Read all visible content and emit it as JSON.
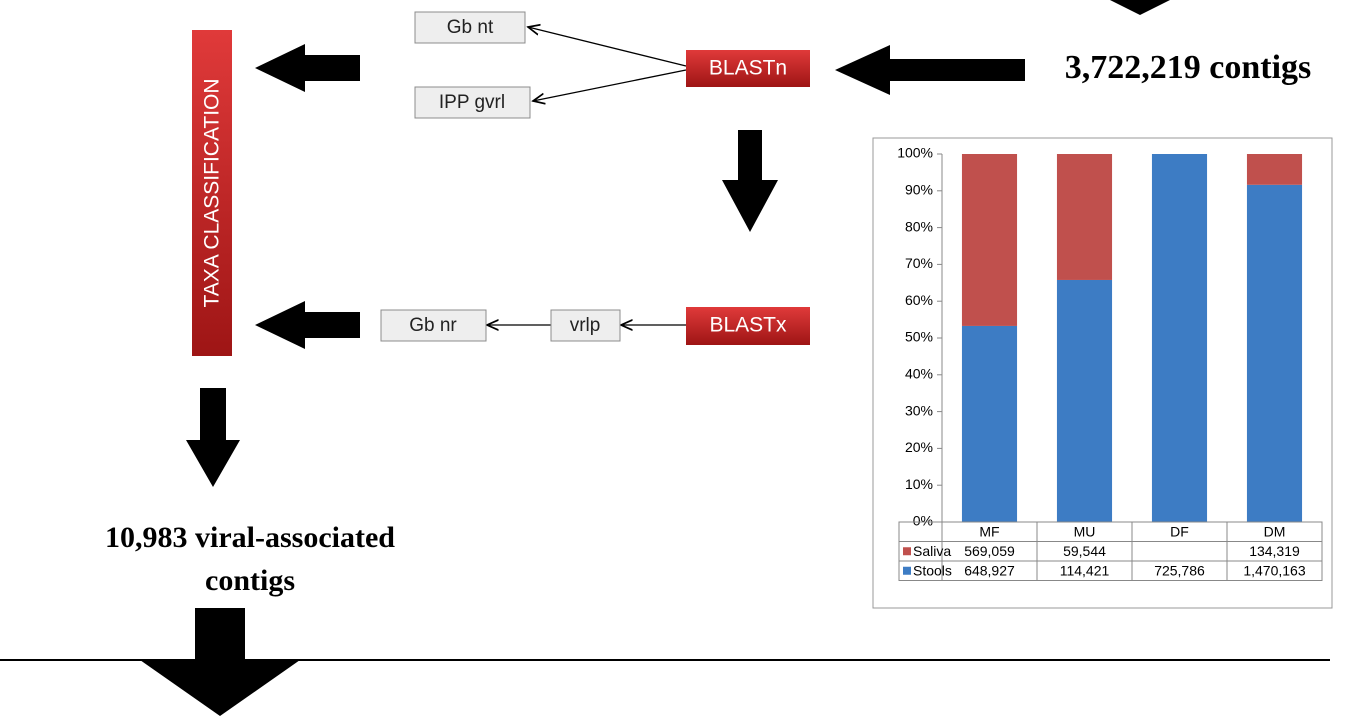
{
  "diagram": {
    "nodes": {
      "gb_nt": "Gb nt",
      "ipp_gvrl": "IPP gvrl",
      "blastn": "BLASTn",
      "contigs_in": "3,722,219 contigs",
      "taxa": "TAXA CLASSIFICATION",
      "gb_nr": "Gb nr",
      "vrlp": "vrlp",
      "blastx": "BLASTx",
      "viral_lines": [
        "10,983 viral-associated",
        "contigs"
      ]
    }
  },
  "chart_data": {
    "type": "bar",
    "stacked": "percent",
    "categories": [
      "MF",
      "MU",
      "DF",
      "DM"
    ],
    "series": [
      {
        "name": "Saliva",
        "color": "#c0504d",
        "values": [
          569059,
          59544,
          null,
          134319
        ],
        "value_labels": [
          "569,059",
          "59,544",
          null,
          "134,319"
        ]
      },
      {
        "name": "Stools",
        "color": "#3d7cc4",
        "values": [
          648927,
          114421,
          725786,
          1470163
        ],
        "value_labels": [
          "648,927",
          "114,421",
          "725,786",
          "1,470,163"
        ]
      }
    ],
    "ylim": [
      0,
      100
    ],
    "yticks": [
      {
        "value": 0,
        "label": "0%"
      },
      {
        "value": 10,
        "label": "10%"
      },
      {
        "value": 20,
        "label": "20%"
      },
      {
        "value": 30,
        "label": "30%"
      },
      {
        "value": 40,
        "label": "40%"
      },
      {
        "value": 50,
        "label": "50%"
      },
      {
        "value": 60,
        "label": "60%"
      },
      {
        "value": 70,
        "label": "70%"
      },
      {
        "value": 80,
        "label": "80%"
      },
      {
        "value": 90,
        "label": "90%"
      },
      {
        "value": 100,
        "label": "100%"
      }
    ]
  }
}
